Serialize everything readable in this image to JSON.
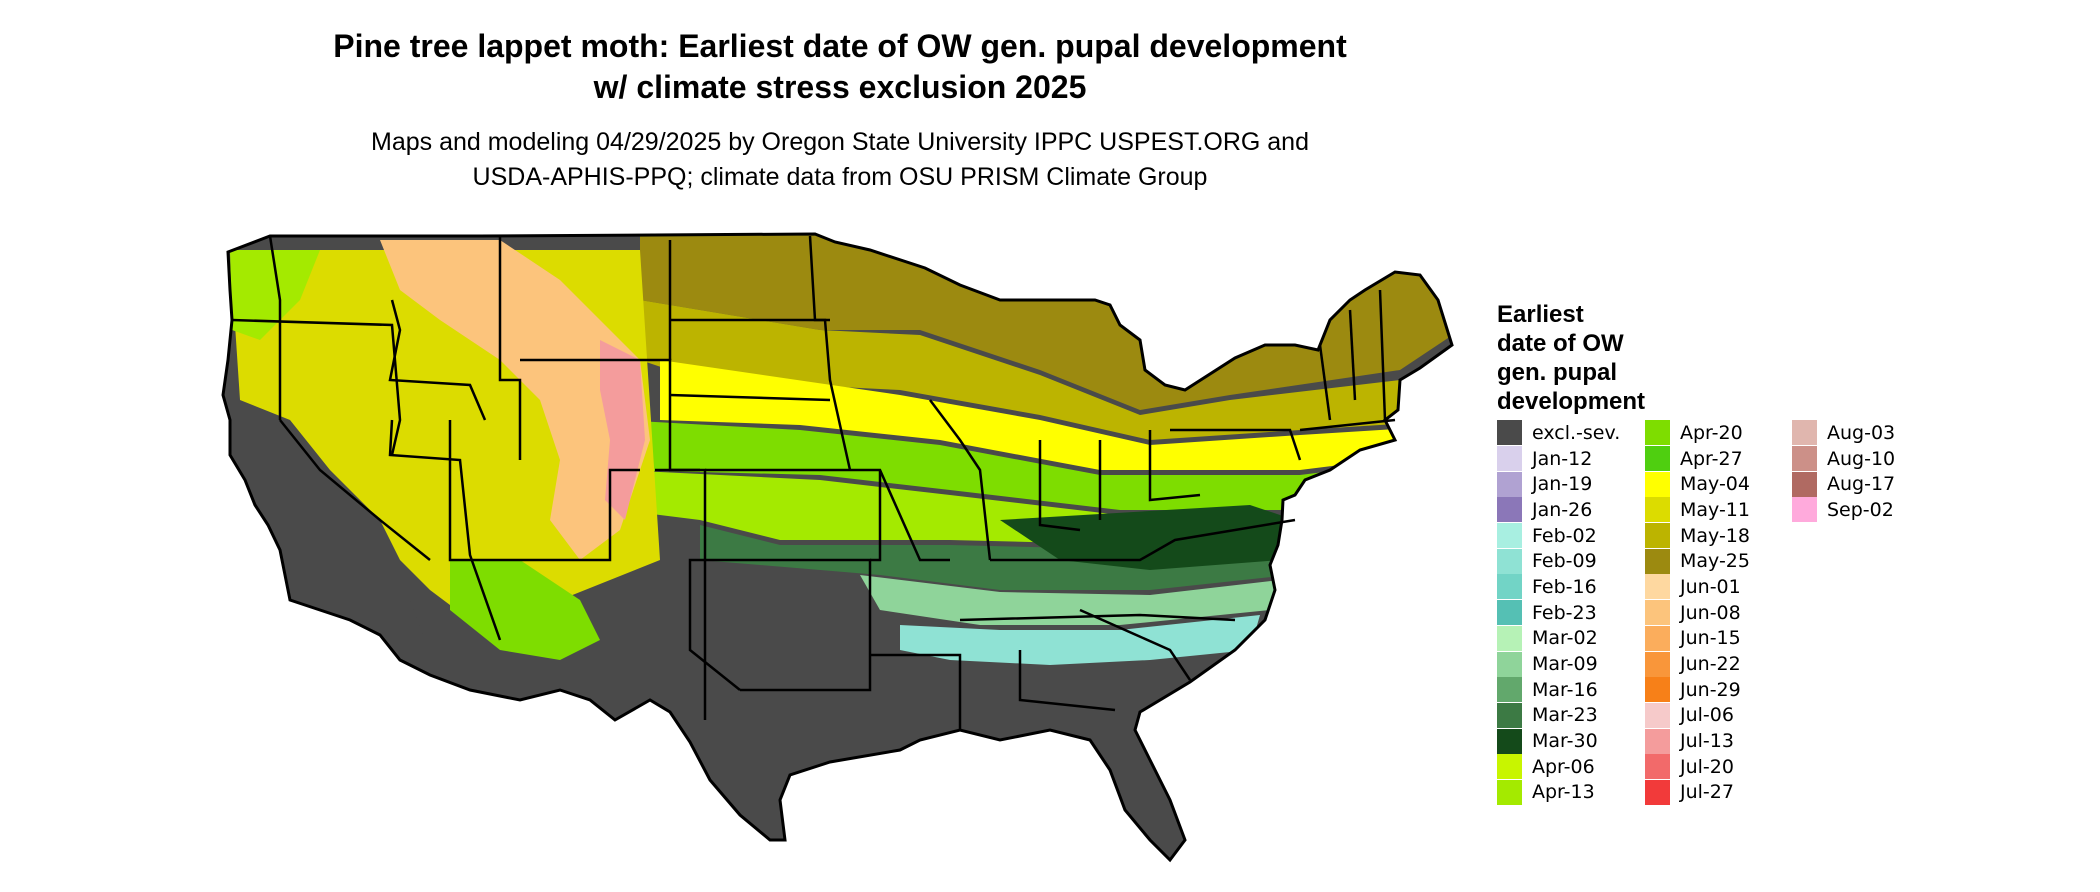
{
  "title_line1": "Pine tree lappet moth: Earliest date of OW gen. pupal development",
  "title_line2": "w/ climate stress exclusion 2025",
  "subtitle_line1": "Maps and modeling 04/29/2025 by Oregon State University IPPC USPEST.ORG and",
  "subtitle_line2": "USDA-APHIS-PPQ; climate data from OSU PRISM Climate Group",
  "legend": {
    "title_lines": [
      "Earliest",
      "date of OW",
      "gen. pupal",
      "development"
    ],
    "columns": [
      [
        {
          "label": "excl.-sev.",
          "color": "#4a4a4a"
        },
        {
          "label": "Jan-12",
          "color": "#d9d0ec"
        },
        {
          "label": "Jan-19",
          "color": "#b0a2d2"
        },
        {
          "label": "Jan-26",
          "color": "#8b77b8"
        },
        {
          "label": "Feb-02",
          "color": "#a8efe1"
        },
        {
          "label": "Feb-09",
          "color": "#8fe2d4"
        },
        {
          "label": "Feb-16",
          "color": "#72d4c6"
        },
        {
          "label": "Feb-23",
          "color": "#55c0b4"
        },
        {
          "label": "Mar-02",
          "color": "#b6f2b6"
        },
        {
          "label": "Mar-09",
          "color": "#8fd49a"
        },
        {
          "label": "Mar-16",
          "color": "#62a86c"
        },
        {
          "label": "Mar-23",
          "color": "#3c7a44"
        },
        {
          "label": "Mar-30",
          "color": "#144a1a"
        },
        {
          "label": "Apr-06",
          "color": "#c8f500"
        },
        {
          "label": "Apr-13",
          "color": "#a4ea00"
        }
      ],
      [
        {
          "label": "Apr-20",
          "color": "#7edd00"
        },
        {
          "label": "Apr-27",
          "color": "#4fcf10"
        },
        {
          "label": "May-04",
          "color": "#ffff00"
        },
        {
          "label": "May-11",
          "color": "#dcdc00"
        },
        {
          "label": "May-18",
          "color": "#bcb400"
        },
        {
          "label": "May-25",
          "color": "#9c8a10"
        },
        {
          "label": "Jun-01",
          "color": "#fed8a0"
        },
        {
          "label": "Jun-08",
          "color": "#fcc47c"
        },
        {
          "label": "Jun-15",
          "color": "#fbad5c"
        },
        {
          "label": "Jun-22",
          "color": "#f9963a"
        },
        {
          "label": "Jun-29",
          "color": "#f78018"
        },
        {
          "label": "Jul-06",
          "color": "#f6caca"
        },
        {
          "label": "Jul-13",
          "color": "#f49c9c"
        },
        {
          "label": "Jul-20",
          "color": "#f26a6a"
        },
        {
          "label": "Jul-27",
          "color": "#f23a3a"
        }
      ],
      [
        {
          "label": "Aug-03",
          "color": "#e0b6ae"
        },
        {
          "label": "Aug-10",
          "color": "#cc9088"
        },
        {
          "label": "Aug-17",
          "color": "#b06a62"
        },
        {
          "label": "Sep-02",
          "color": "#ffaadc"
        }
      ]
    ]
  },
  "map_colors": {
    "excluded": "#4a4a4a",
    "mar_early": "#8fd49a",
    "mar_late": "#3c7a44",
    "mar_end": "#144a1a",
    "apr_early": "#a4ea00",
    "apr_late": "#7edd00",
    "may_early": "#ffff00",
    "may_mid": "#dcdc00",
    "may_late": "#bcb400",
    "may_end": "#9c8a10",
    "jun": "#fcc47c",
    "jul": "#f49c9c",
    "feb": "#8fe2d4",
    "border": "#000000"
  }
}
